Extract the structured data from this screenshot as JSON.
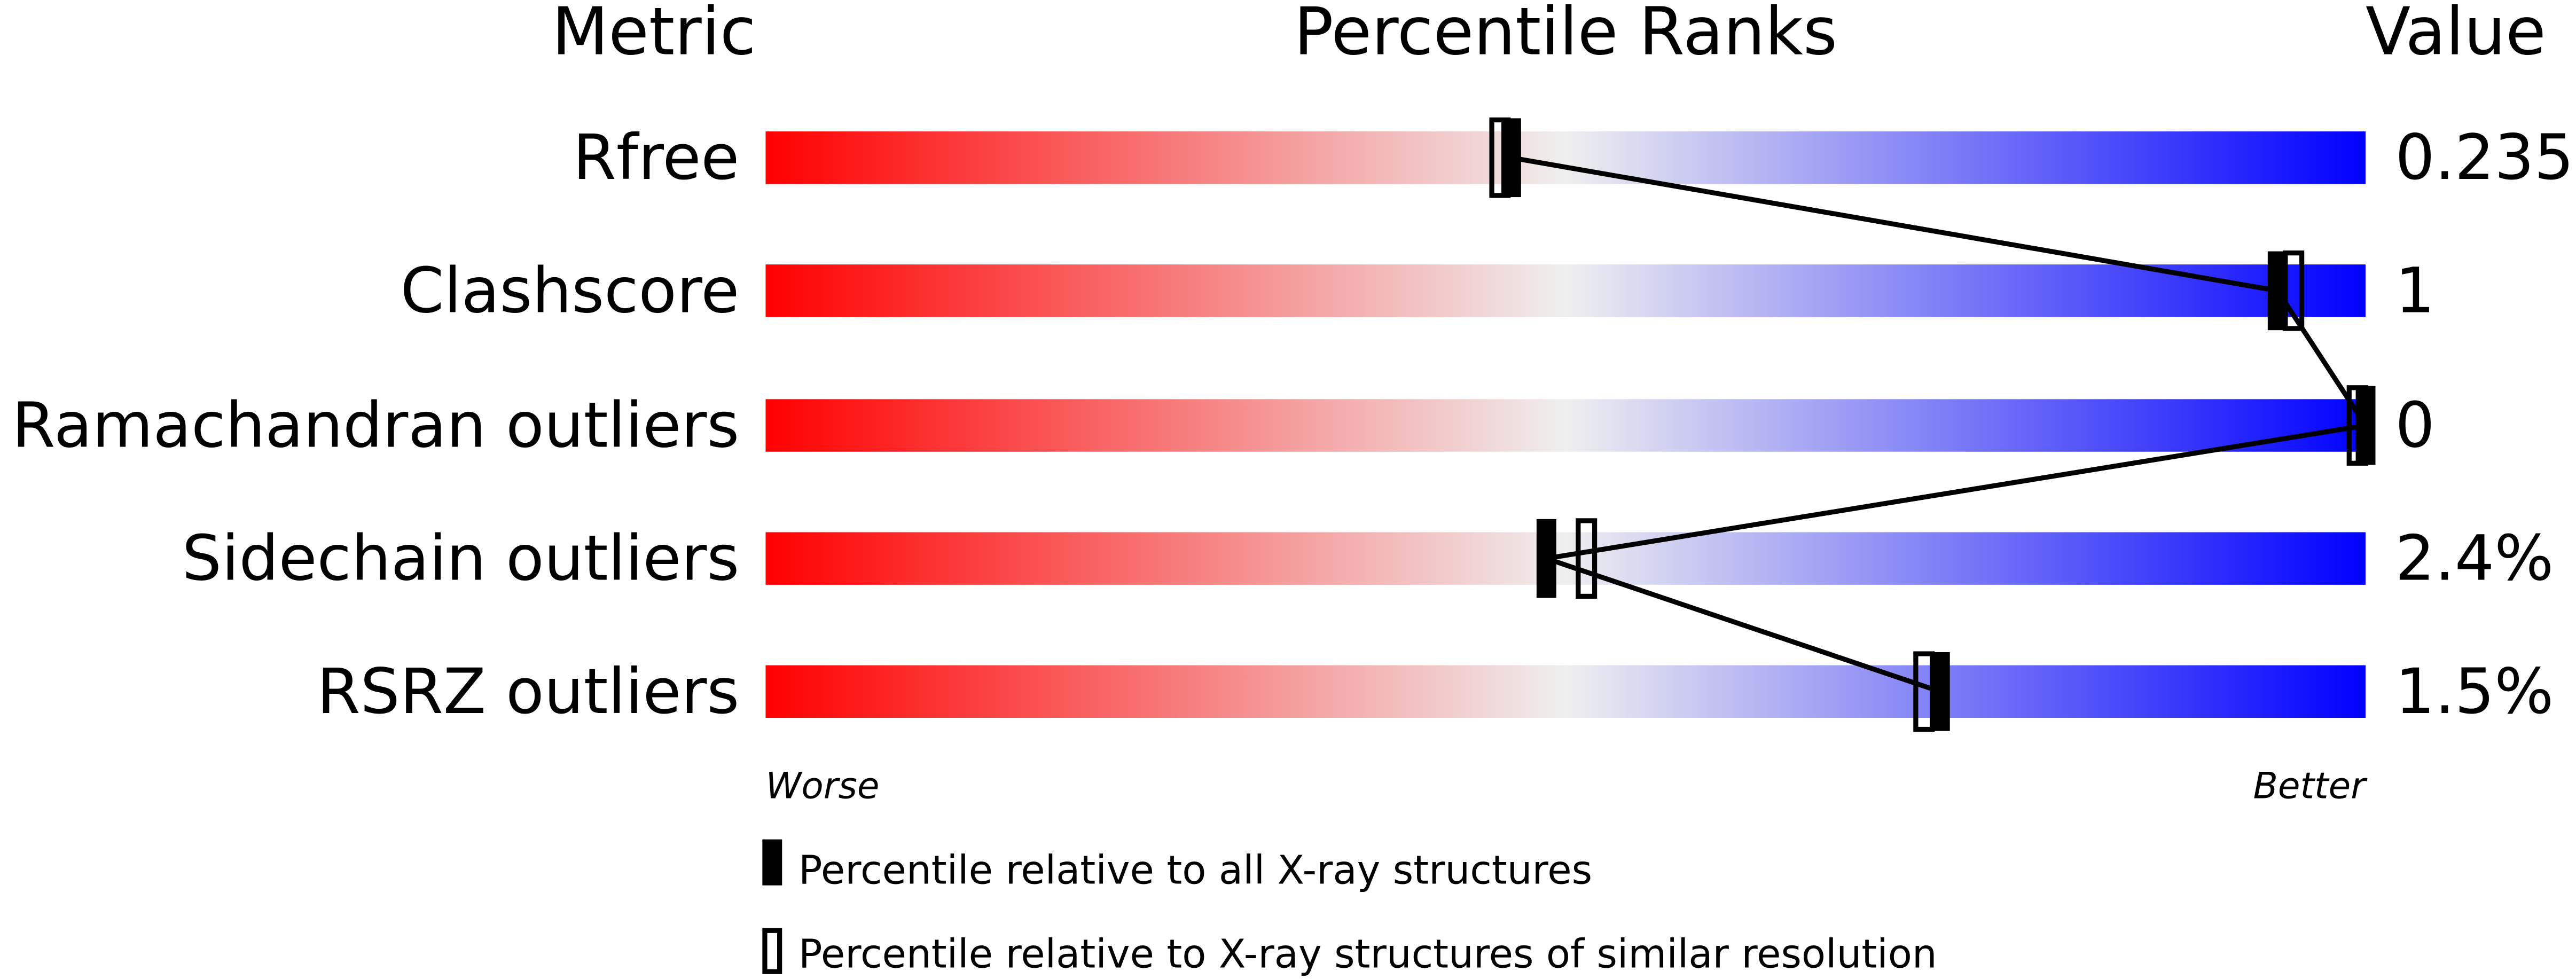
{
  "chart_data": {
    "type": "percentile-bar",
    "headers": {
      "metric": "Metric",
      "ranks": "Percentile Ranks",
      "value": "Value"
    },
    "xlim": [
      0,
      100
    ],
    "axis_labels": {
      "left": "Worse",
      "right": "Better"
    },
    "gradient_colors": [
      "#ff0000",
      "#efefef",
      "#0000ff"
    ],
    "rows": [
      {
        "metric": "Rfree",
        "value": "0.235",
        "percentile_all": 46.6,
        "percentile_similar": 45.9
      },
      {
        "metric": "Clashscore",
        "value": "1",
        "percentile_all": 94.5,
        "percentile_similar": 95.5
      },
      {
        "metric": "Ramachandran outliers",
        "value": "0",
        "percentile_all": 100,
        "percentile_similar": 100
      },
      {
        "metric": "Sidechain outliers",
        "value": "2.4%",
        "percentile_all": 48.8,
        "percentile_similar": 51.3
      },
      {
        "metric": "RSRZ outliers",
        "value": "1.5%",
        "percentile_all": 73.4,
        "percentile_similar": 72.4
      }
    ],
    "legend": [
      {
        "marker": "filled",
        "label": "Percentile relative to all X-ray structures"
      },
      {
        "marker": "open",
        "label": "Percentile relative to X-ray structures of similar resolution"
      }
    ],
    "legend_position": "bottom"
  }
}
